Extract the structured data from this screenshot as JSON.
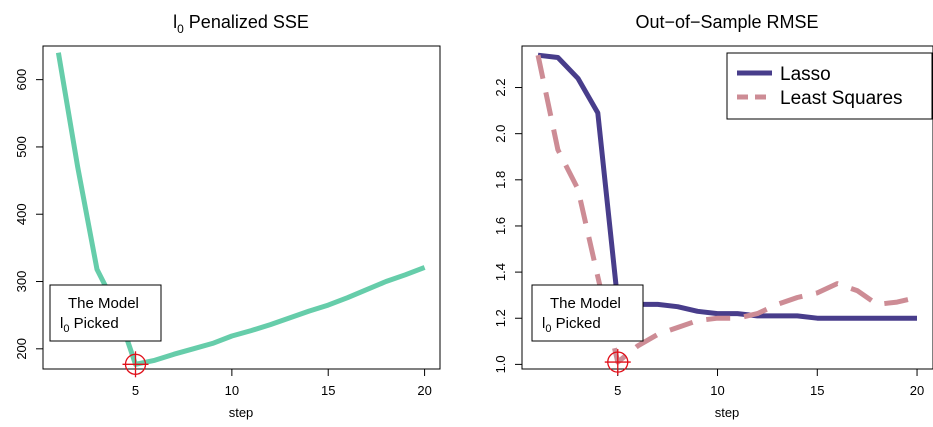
{
  "chart_data": [
    {
      "type": "line",
      "title_main": "l",
      "title_sub": "0",
      "title_rest": " Penalized SSE",
      "xlabel": "step",
      "ylabel": "",
      "xlim": [
        0.2,
        20.8
      ],
      "ylim": [
        170,
        650
      ],
      "xticks": [
        5,
        10,
        15,
        20
      ],
      "yticks": [
        200,
        300,
        400,
        500,
        600
      ],
      "grid": false,
      "series": [
        {
          "color": "#66CDAA",
          "style": "solid",
          "x": [
            1,
            2,
            3,
            4,
            5,
            6,
            7,
            8,
            9,
            10,
            11,
            12,
            13,
            14,
            15,
            16,
            17,
            18,
            19,
            20
          ],
          "y": [
            640,
            470,
            318,
            262,
            177,
            183,
            192,
            200,
            208,
            219,
            227,
            236,
            246,
            256,
            265,
            276,
            288,
            300,
            310,
            321
          ]
        }
      ],
      "annotation": {
        "line1": "The Model",
        "line2_main": "l",
        "line2_sub": "0",
        "line2_rest": " Picked",
        "marker_x": 5,
        "marker_y": 177,
        "marker_color": "#E0101A"
      }
    },
    {
      "type": "line",
      "title": "Out−of−Sample RMSE",
      "xlabel": "step",
      "ylabel": "",
      "xlim": [
        0.2,
        20.8
      ],
      "ylim": [
        0.98,
        2.38
      ],
      "xticks": [
        5,
        10,
        15,
        20
      ],
      "yticks": [
        "1.0",
        "1.2",
        "1.4",
        "1.6",
        "1.8",
        "2.0",
        "2.2"
      ],
      "grid": false,
      "legend_position": "top-right",
      "series": [
        {
          "name": "Lasso",
          "color": "#483D8B",
          "style": "solid",
          "x": [
            1,
            2,
            3,
            4,
            5,
            6,
            7,
            8,
            9,
            10,
            11,
            12,
            13,
            14,
            15,
            16,
            17,
            18,
            19,
            20
          ],
          "y": [
            2.34,
            2.33,
            2.24,
            2.09,
            1.27,
            1.26,
            1.26,
            1.25,
            1.23,
            1.22,
            1.22,
            1.21,
            1.21,
            1.21,
            1.2,
            1.2,
            1.2,
            1.2,
            1.2,
            1.2
          ]
        },
        {
          "name": "Least Squares",
          "color": "#CD8C95",
          "style": "dashed",
          "x": [
            1,
            2,
            3,
            4,
            5,
            6,
            7,
            8,
            9,
            10,
            11,
            12,
            13,
            14,
            15,
            16,
            17,
            18,
            19,
            20
          ],
          "y": [
            2.34,
            1.93,
            1.76,
            1.38,
            1.01,
            1.08,
            1.13,
            1.16,
            1.19,
            1.2,
            1.2,
            1.22,
            1.26,
            1.29,
            1.31,
            1.35,
            1.32,
            1.26,
            1.27,
            1.29
          ]
        }
      ],
      "annotation": {
        "line1": "The Model",
        "line2_main": "l",
        "line2_sub": "0",
        "line2_rest": " Picked",
        "marker_x": 5,
        "marker_y": 1.01,
        "marker_color": "#E0101A"
      }
    }
  ]
}
